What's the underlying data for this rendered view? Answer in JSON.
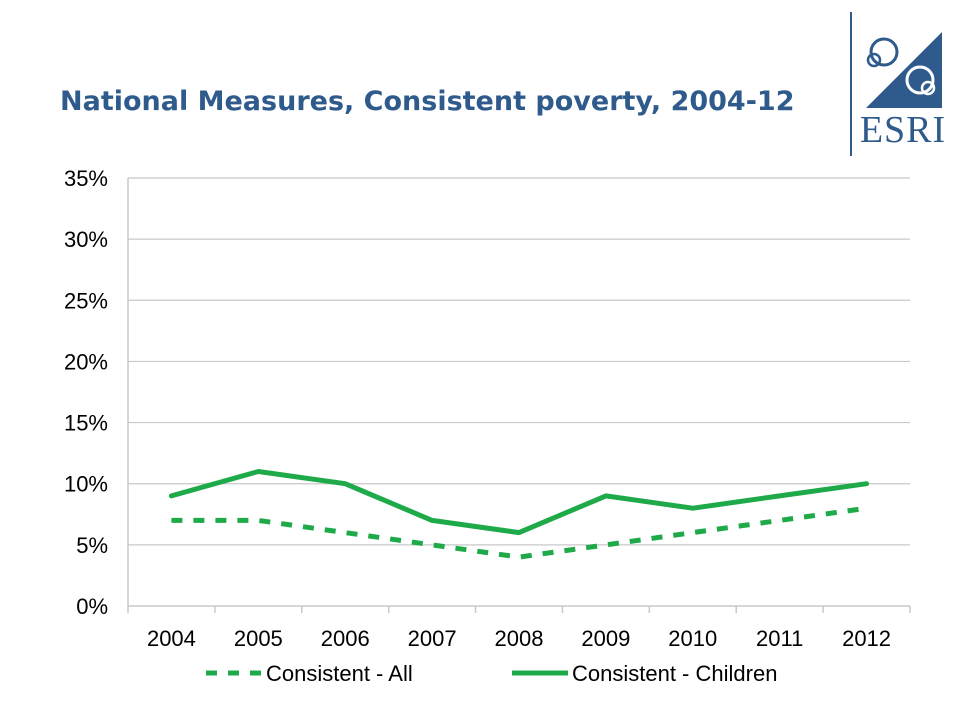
{
  "header": {
    "title": "National Measures, Consistent poverty, 2004-12",
    "logo_text": "ESRI"
  },
  "colors": {
    "title": "#2f5b8c",
    "series": "#1faa4a",
    "grid": "#c8c8c8",
    "logo": "#2f5b8c"
  },
  "chart_data": {
    "type": "line",
    "title": "National Measures, Consistent poverty, 2004-12",
    "xlabel": "",
    "ylabel": "",
    "categories": [
      "2004",
      "2005",
      "2006",
      "2007",
      "2008",
      "2009",
      "2010",
      "2011",
      "2012"
    ],
    "ylim": [
      0,
      35
    ],
    "yticks": [
      "0%",
      "5%",
      "10%",
      "15%",
      "20%",
      "25%",
      "30%",
      "35%"
    ],
    "ytick_values": [
      0,
      5,
      10,
      15,
      20,
      25,
      30,
      35
    ],
    "grid": true,
    "legend_position": "bottom",
    "series": [
      {
        "name": "Consistent - All",
        "style": "dashed",
        "values": [
          7,
          7,
          6,
          5,
          4,
          5,
          6,
          7,
          8
        ]
      },
      {
        "name": "Consistent - Children",
        "style": "solid",
        "values": [
          9,
          11,
          10,
          7,
          6,
          9,
          8,
          9,
          10
        ]
      }
    ]
  }
}
